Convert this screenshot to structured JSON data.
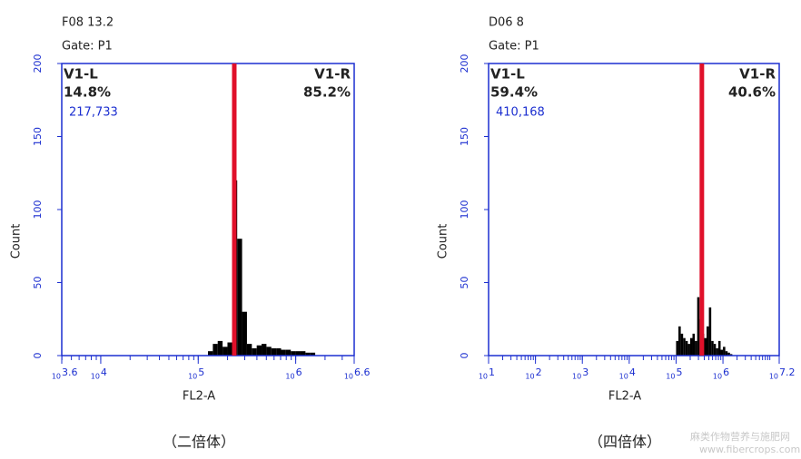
{
  "chart_data": [
    {
      "type": "histogram",
      "title": "F08 13.2",
      "subtitle": "Gate: P1",
      "ylabel": "Count",
      "xlabel": "FL2-A",
      "caption": "（二倍体）",
      "x_tick_base": "10",
      "xlim": [
        3.6,
        6.6
      ],
      "xticks": [
        3.6,
        4,
        5,
        6,
        6.6
      ],
      "ylim": [
        0,
        200
      ],
      "yticks": [
        0,
        50,
        100,
        150,
        200
      ],
      "axis_color": "#1c2fd0",
      "bar_color": "#000000",
      "gate_x": 5.37,
      "gate_color": "#e0102a",
      "regions": [
        {
          "name": "V1-L",
          "value": 14.8,
          "value_label": "14.8%",
          "events": 217733,
          "events_label": "217,733"
        },
        {
          "name": "V1-R",
          "value": 85.2,
          "value_label": "85.2%"
        }
      ],
      "bins": [
        5.1,
        5.15,
        5.2,
        5.25,
        5.3,
        5.35,
        5.4,
        5.45,
        5.5,
        5.55,
        5.6,
        5.65,
        5.7,
        5.75,
        5.8,
        5.85,
        5.9,
        5.95,
        6.0,
        6.05,
        6.1,
        6.15,
        6.2
      ],
      "values": [
        3,
        8,
        10,
        6,
        9,
        120,
        80,
        30,
        8,
        5,
        7,
        8,
        6,
        5,
        5,
        4,
        4,
        3,
        3,
        3,
        2,
        2
      ]
    },
    {
      "type": "histogram",
      "title": "D06 8",
      "subtitle": "Gate: P1",
      "ylabel": "Count",
      "xlabel": "FL2-A",
      "caption": "（四倍体）",
      "x_tick_base": "10",
      "xlim": [
        1,
        7.2
      ],
      "xticks": [
        1,
        2,
        3,
        4,
        5,
        6,
        7.2
      ],
      "ylim": [
        0,
        200
      ],
      "yticks": [
        0,
        50,
        100,
        150,
        200
      ],
      "axis_color": "#1c2fd0",
      "bar_color": "#000000",
      "gate_x": 5.55,
      "gate_color": "#e0102a",
      "regions": [
        {
          "name": "V1-L",
          "value": 59.4,
          "value_label": "59.4%",
          "events": 410168,
          "events_label": "410,168"
        },
        {
          "name": "V1-R",
          "value": 40.6,
          "value_label": "40.6%"
        }
      ],
      "bins": [
        5.0,
        5.05,
        5.1,
        5.15,
        5.2,
        5.25,
        5.3,
        5.35,
        5.4,
        5.45,
        5.5,
        5.55,
        5.6,
        5.65,
        5.7,
        5.75,
        5.8,
        5.85,
        5.9,
        5.95,
        6.0,
        6.05,
        6.1,
        6.15,
        6.2
      ],
      "values": [
        10,
        20,
        15,
        12,
        10,
        8,
        12,
        15,
        10,
        40,
        25,
        15,
        12,
        20,
        33,
        10,
        8,
        5,
        10,
        4,
        6,
        3,
        2,
        1
      ]
    }
  ],
  "watermark": {
    "lines": [
      "麻类作物营养与施肥网",
      "www.fibercrops.com"
    ]
  }
}
